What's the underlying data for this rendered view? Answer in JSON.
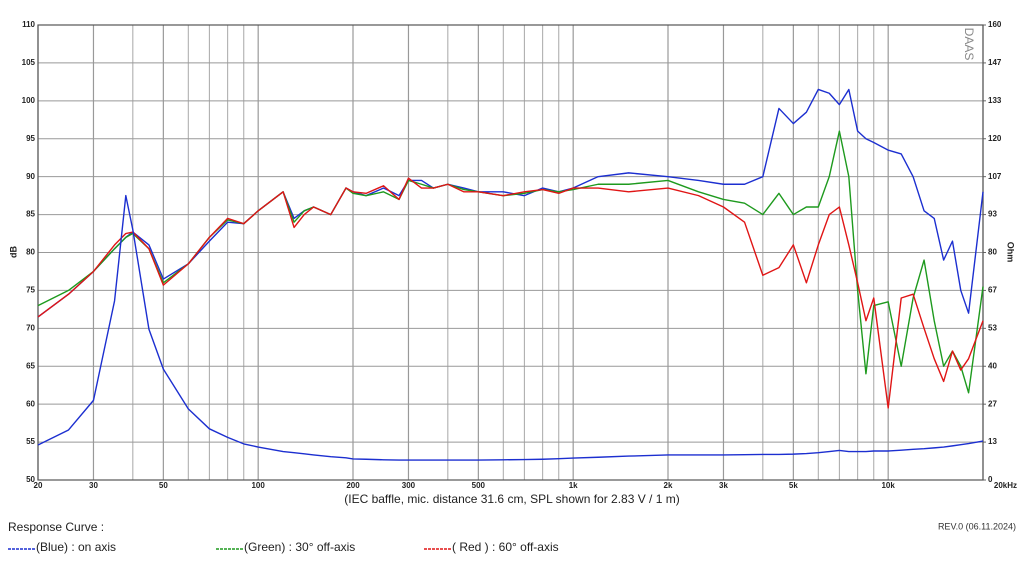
{
  "chart_data": {
    "type": "line",
    "xscale": "log",
    "grid": true,
    "caption": "(IEC baffle, mic. distance 31.6 cm, SPL shown for 2.83 V / 1 m)",
    "ylabel": "dB",
    "y2label": "Ohm",
    "watermark": "DAAS",
    "revision": "REV.0 (06.11.2024)",
    "legend_title": "Response Curve :",
    "xlim": [
      20,
      20000
    ],
    "xticks": [
      20,
      30,
      50,
      100,
      200,
      300,
      500,
      {
        "value": 1000,
        "label": "1k"
      },
      {
        "value": 2000,
        "label": "2k"
      },
      {
        "value": 3000,
        "label": "3k"
      },
      {
        "value": 5000,
        "label": "5k"
      },
      {
        "value": 10000,
        "label": "10k"
      },
      {
        "value": 20000,
        "label": "20kHz"
      }
    ],
    "xgrid": [
      40,
      60,
      70,
      80,
      90,
      400,
      600,
      700,
      800,
      900,
      4000,
      6000,
      7000,
      8000,
      9000
    ],
    "ylim": [
      50,
      110
    ],
    "yticks": [
      50,
      55,
      60,
      65,
      70,
      75,
      80,
      85,
      90,
      95,
      100,
      105,
      110
    ],
    "y2lim": [
      0,
      160
    ],
    "y2ticks": [
      0,
      {
        "value": 13.333,
        "label": "13"
      },
      {
        "value": 26.667,
        "label": "27"
      },
      40,
      {
        "value": 53.333,
        "label": "53"
      },
      {
        "value": 66.667,
        "label": "67"
      },
      80,
      {
        "value": 93.333,
        "label": "93"
      },
      {
        "value": 106.667,
        "label": "107"
      },
      120,
      {
        "value": 133.333,
        "label": "133"
      },
      {
        "value": 146.667,
        "label": "147"
      },
      160
    ],
    "x": [
      20,
      25,
      30,
      35,
      38,
      40,
      45,
      50,
      60,
      70,
      80,
      90,
      100,
      120,
      130,
      140,
      150,
      170,
      190,
      200,
      220,
      250,
      280,
      300,
      330,
      360,
      400,
      450,
      500,
      600,
      700,
      800,
      900,
      1000,
      1200,
      1500,
      2000,
      2500,
      3000,
      3500,
      4000,
      4500,
      5000,
      5500,
      6000,
      6500,
      7000,
      7500,
      8000,
      8500,
      9000,
      10000,
      11000,
      12000,
      13000,
      14000,
      15000,
      16000,
      17000,
      18000,
      20000
    ],
    "series": [
      {
        "name": "(Blue)  : on axis",
        "color": "#1c2fd0",
        "values": [
          71.5,
          74.5,
          77.5,
          80.5,
          82,
          82.7,
          81,
          76.5,
          78.5,
          81.5,
          84,
          83.8,
          85.5,
          88,
          84.5,
          85.5,
          86,
          85,
          88.5,
          88,
          87.5,
          88.5,
          87.5,
          89.5,
          89.5,
          88.5,
          89,
          88.5,
          88,
          88,
          87.5,
          88.5,
          88,
          88.5,
          90,
          90.5,
          90,
          89.5,
          89,
          89,
          90,
          99,
          97,
          98.5,
          101.5,
          101,
          99.5,
          101.5,
          96,
          95,
          94.5,
          93.5,
          93,
          90,
          85.5,
          84.5,
          79,
          81.5,
          75,
          72,
          88
        ]
      },
      {
        "name": "(Green) : 30° off-axis",
        "color": "#1e9a1e",
        "values": [
          73,
          75,
          77.5,
          80.5,
          82,
          82.5,
          80.5,
          76,
          78.5,
          82,
          84.3,
          83.8,
          85.5,
          88,
          84,
          85.5,
          86,
          85,
          88.5,
          87.8,
          87.5,
          88,
          87,
          89.5,
          89,
          88.5,
          89,
          88.3,
          88,
          87.5,
          87.8,
          88.3,
          88,
          88.3,
          89,
          89,
          89.5,
          88,
          87,
          86.5,
          85,
          87.8,
          85,
          86,
          86,
          90,
          96,
          90,
          75,
          64,
          73,
          73.5,
          65,
          74,
          79,
          71,
          65,
          67,
          65,
          61.5,
          75.5
        ]
      },
      {
        "name": "( Red ) : 60° off-axis",
        "color": "#e01515",
        "values": [
          71.5,
          74.5,
          77.5,
          81,
          82.5,
          82.7,
          80.5,
          75.7,
          78.5,
          82,
          84.5,
          83.8,
          85.5,
          88,
          83.3,
          85,
          86,
          85,
          88.5,
          88,
          87.8,
          88.8,
          87,
          89.8,
          88.5,
          88.5,
          89,
          88,
          88,
          87.5,
          88,
          88.3,
          87.8,
          88.5,
          88.5,
          88,
          88.5,
          87.5,
          86,
          84,
          77,
          78,
          81,
          76,
          81,
          85,
          86,
          81,
          76,
          71,
          74,
          59.5,
          74,
          74.5,
          70,
          66,
          63,
          67,
          64.5,
          66,
          71
        ]
      },
      {
        "color": "#1c2fd0",
        "axis": "y2",
        "values": [
          12.3,
          17.6,
          28,
          63,
          100,
          88,
          53,
          39,
          25,
          18,
          15,
          12.7,
          11.6,
          10,
          9.6,
          9.2,
          8.8,
          8.2,
          7.8,
          7.4,
          7.3,
          7.1,
          7,
          7,
          7,
          7,
          7,
          7,
          7,
          7.1,
          7.2,
          7.3,
          7.5,
          7.7,
          8,
          8.4,
          8.8,
          8.8,
          8.8,
          8.9,
          9,
          9,
          9.1,
          9.3,
          9.6,
          10,
          10.4,
          10,
          10,
          10,
          10.2,
          10.2,
          10.5,
          10.8,
          11,
          11.3,
          11.6,
          12,
          12.4,
          12.8,
          13.7
        ]
      }
    ]
  }
}
